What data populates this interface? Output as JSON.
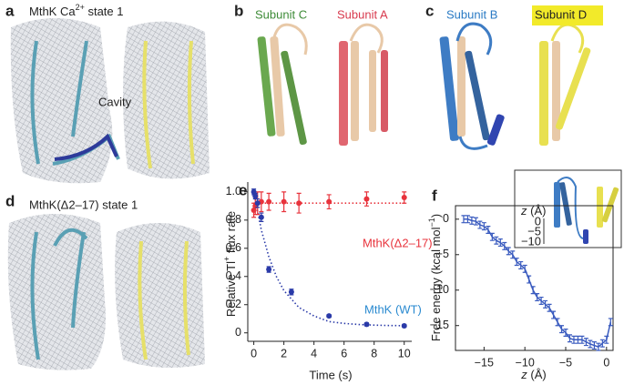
{
  "panels": {
    "a": {
      "letter": "a",
      "title": "MthK Ca",
      "title_sup": "2+",
      "title_end": " state 1",
      "label": "Cavity"
    },
    "b": {
      "letter": "b",
      "left": "Subunit C",
      "right": "Subunit A"
    },
    "c": {
      "letter": "c",
      "left": "Subunit B",
      "right": "Subunit D"
    },
    "d": {
      "letter": "d",
      "title": "MthK(Δ2–17) state 1"
    },
    "e": {
      "letter": "e"
    },
    "f": {
      "letter": "f",
      "inset_label": "z",
      "inset_unit": " (Å)",
      "inset_ticks": [
        "0",
        "−5",
        "−10"
      ]
    }
  },
  "chart_data": [
    {
      "type": "scatter",
      "xlabel": "Time (s)",
      "ylabel": "Relative Tl",
      "ylabel_sup": "+",
      "ylabel_end": " flux rate",
      "xlim": [
        -0.4,
        10.5
      ],
      "ylim": [
        -0.06,
        1.07
      ],
      "xticks": [
        0,
        2,
        4,
        6,
        8,
        10
      ],
      "yticks": [
        0,
        0.2,
        0.4,
        0.6,
        0.8,
        {
          "value": 1,
          "label": "1.0"
        }
      ],
      "series": [
        {
          "name": "MthK(Δ2–17)",
          "color": "#e8333c",
          "label_color": "#e8333c",
          "x": [
            0,
            0.1,
            0.25,
            0.5,
            1,
            2,
            3,
            5,
            7.5,
            10
          ],
          "values": [
            0.87,
            0.9,
            0.92,
            0.93,
            0.93,
            0.93,
            0.92,
            0.93,
            0.95,
            0.96
          ],
          "errors": [
            0.05,
            0.06,
            0.08,
            0.07,
            0.06,
            0.07,
            0.07,
            0.05,
            0.05,
            0.04
          ]
        },
        {
          "name": "MthK (WT)",
          "color": "#2a3aa8",
          "label_color": "#2a8ad0",
          "x": [
            0,
            0.1,
            0.25,
            0.5,
            1,
            2.5,
            5,
            7.5,
            10
          ],
          "values": [
            1,
            0.97,
            0.92,
            0.82,
            0.45,
            0.29,
            0.12,
            0.06,
            0.05
          ],
          "errors": [
            0.02,
            0.02,
            0.03,
            0.03,
            0.02,
            0.02,
            0.01,
            0.01,
            0.01
          ]
        }
      ],
      "fits": [
        {
          "color": "#e8333c",
          "x": [
            0,
            10
          ],
          "values": [
            0.92,
            0.92
          ]
        },
        {
          "color": "#2a3aa8",
          "x": [
            0,
            0.5,
            1,
            1.5,
            2,
            3,
            4,
            5,
            6,
            7,
            8,
            9,
            10
          ],
          "values": [
            1,
            0.73,
            0.54,
            0.4,
            0.3,
            0.18,
            0.12,
            0.08,
            0.067,
            0.059,
            0.055,
            0.052,
            0.051
          ]
        }
      ]
    },
    {
      "type": "line",
      "xlabel": "z",
      "xlabel_end": " (Å)",
      "ylabel": "Free energy (kcal mol",
      "ylabel_sup": "−1",
      "ylabel_end": ")",
      "xlim": [
        -18.5,
        0.8
      ],
      "ylim": [
        -18.5,
        1.9
      ],
      "xticks": [
        {
          "value": -15,
          "label": "−15"
        },
        {
          "value": -10,
          "label": "−10"
        },
        {
          "value": -5,
          "label": "−5"
        },
        0
      ],
      "yticks": [
        0,
        {
          "value": -5,
          "label": "−5"
        },
        {
          "value": -10,
          "label": "−10"
        },
        {
          "value": -15,
          "label": "−15"
        }
      ],
      "series": [
        {
          "color": "#3a5bbf",
          "x": [
            -17.5,
            -17,
            -16.5,
            -16,
            -15.5,
            -15,
            -14.5,
            -14,
            -13.5,
            -13,
            -12.5,
            -12,
            -11.5,
            -11,
            -10.5,
            -10,
            -9.5,
            -9,
            -8.5,
            -8,
            -7.5,
            -7,
            -6.5,
            -6,
            -5.5,
            -5,
            -4.5,
            -4,
            -3.5,
            -3,
            -2.5,
            -2,
            -1.5,
            -1,
            -0.5,
            0,
            0.5
          ],
          "values": [
            0,
            0,
            -0.2,
            -0.3,
            -0.8,
            -1,
            -1.5,
            -2.5,
            -3,
            -3.3,
            -3.8,
            -4.5,
            -5,
            -6,
            -6.5,
            -7,
            -8.5,
            -10,
            -11,
            -11.5,
            -12,
            -12.5,
            -13.5,
            -14.5,
            -15.5,
            -16,
            -16.8,
            -17,
            -17,
            -17,
            -17.3,
            -17.6,
            -17.8,
            -18,
            -17.5,
            -17,
            -14.5
          ],
          "errors": [
            0.5,
            0.5,
            0.5,
            0.5,
            0.5,
            0.5,
            0.5,
            0.5,
            0.5,
            0.5,
            0.5,
            0.5,
            0.5,
            0.5,
            0.5,
            0.5,
            0.5,
            0.5,
            0.5,
            0.5,
            0.5,
            0.5,
            0.5,
            0.5,
            0.5,
            0.5,
            0.5,
            0.5,
            0.5,
            0.5,
            0.5,
            0.5,
            0.5,
            0.5,
            0.5,
            0.5,
            0.5
          ]
        }
      ]
    }
  ]
}
